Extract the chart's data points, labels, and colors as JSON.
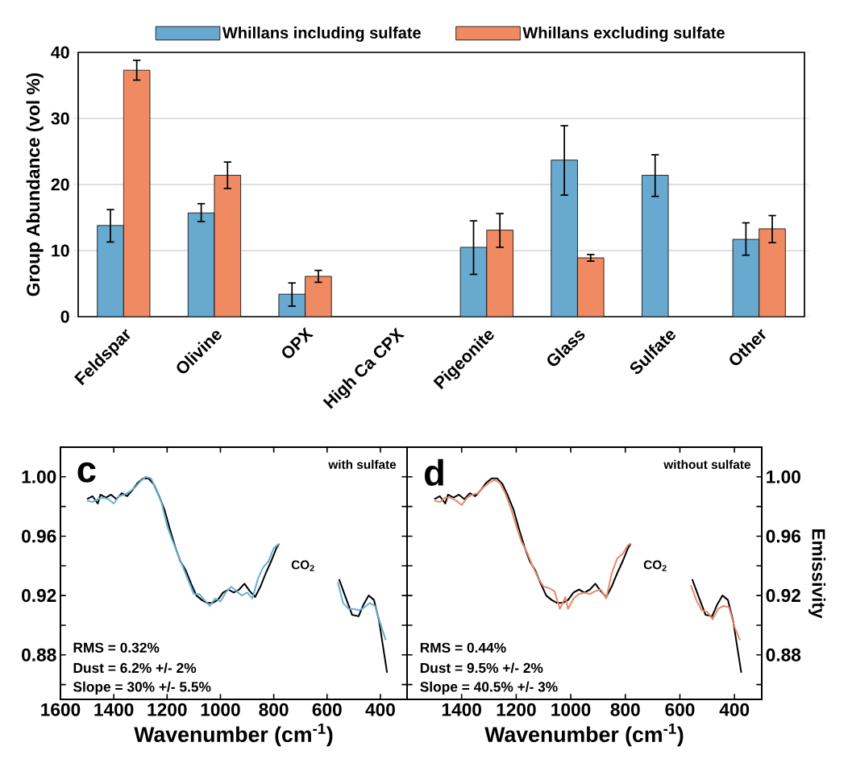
{
  "chart_data": [
    {
      "type": "bar",
      "ylabel": "Group Abundance (vol %)",
      "categories": [
        "Feldspar",
        "Olivine",
        "OPX",
        "High Ca CPX",
        "Pigeonite",
        "Glass",
        "Sulfate",
        "Other"
      ],
      "series": [
        {
          "name": "Whillans including sulfate",
          "color": "#67a9cf",
          "values": [
            13.8,
            15.7,
            3.4,
            null,
            10.5,
            23.7,
            21.4,
            11.7
          ],
          "errors": [
            [
              11.3,
              16.2
            ],
            [
              14.4,
              17.1
            ],
            [
              1.6,
              5.1
            ],
            null,
            [
              6.4,
              14.5
            ],
            [
              18.4,
              28.9
            ],
            [
              18.2,
              24.5
            ],
            [
              9.3,
              14.2
            ]
          ]
        },
        {
          "name": "Whillans excluding sulfate",
          "color": "#ef8a62",
          "values": [
            37.3,
            21.4,
            6.1,
            null,
            13.1,
            8.9,
            null,
            13.3
          ],
          "errors": [
            [
              35.8,
              38.8
            ],
            [
              19.4,
              23.4
            ],
            [
              5.2,
              7.0
            ],
            null,
            [
              10.5,
              15.6
            ],
            [
              8.4,
              9.4
            ],
            null,
            [
              11.2,
              15.3
            ]
          ]
        }
      ],
      "ylim": [
        0,
        40
      ],
      "yticks": [
        0,
        10,
        20,
        30,
        40
      ],
      "grid": "y",
      "legend": "top"
    },
    {
      "type": "line",
      "xlabel": "Wavenumber (cm$^{-1}$)",
      "xlim": [
        1600,
        300
      ],
      "ylim": [
        0.85,
        1.02
      ],
      "xticks": [
        1600,
        1400,
        1200,
        1000,
        800,
        600,
        400
      ],
      "yticks": [
        {
          "value": 1.0,
          "label": "1.00"
        },
        {
          "value": 0.98,
          "label": null
        },
        {
          "value": 0.96,
          "label": "0.96"
        },
        {
          "value": 0.94,
          "label": null
        },
        {
          "value": 0.92,
          "label": "0.92"
        },
        {
          "value": 0.9,
          "label": null
        },
        {
          "value": 0.88,
          "label": "0.88"
        },
        {
          "value": 0.86,
          "label": null
        }
      ],
      "annotations": [
        "c",
        "with sulfate",
        "CO$_{2}$",
        "RMS = 0.32%",
        "Dust = 6.2% +/- 2%",
        "Slope = 30% +/- 5.5%"
      ],
      "series": [
        {
          "color": "#000000",
          "x": [
            1500,
            1480,
            1460,
            1450,
            1430,
            1410,
            1390,
            1370,
            1350,
            1330,
            1310,
            1290,
            1270,
            1250,
            1230,
            1210,
            1190,
            1170,
            1150,
            1130,
            1110,
            1090,
            1070,
            1050,
            1030,
            1010,
            990,
            970,
            950,
            930,
            910,
            890,
            870,
            850,
            830,
            810,
            790,
            780,
            670,
            555,
            531,
            506,
            482,
            463,
            444,
            424,
            405,
            375
          ],
          "values": [
            0.985,
            0.987,
            0.982,
            0.988,
            0.986,
            0.988,
            0.985,
            0.989,
            0.987,
            0.991,
            0.996,
            0.999,
            0.999,
            0.995,
            0.987,
            0.978,
            0.965,
            0.953,
            0.943,
            0.937,
            0.928,
            0.92,
            0.917,
            0.915,
            0.915,
            0.917,
            0.922,
            0.924,
            0.922,
            0.924,
            0.928,
            0.923,
            0.919,
            0.926,
            0.935,
            0.943,
            0.952,
            0.955,
            null,
            0.931,
            0.919,
            0.907,
            0.906,
            0.914,
            0.92,
            0.917,
            0.903,
            0.868
          ]
        },
        {
          "color": "#6aaed6",
          "x": [
            1500,
            1480,
            1460,
            1440,
            1420,
            1400,
            1380,
            1360,
            1340,
            1320,
            1300,
            1280,
            1260,
            1240,
            1220,
            1200,
            1180,
            1160,
            1140,
            1120,
            1100,
            1080,
            1060,
            1040,
            1020,
            1000,
            980,
            960,
            940,
            920,
            900,
            880,
            860,
            840,
            820,
            800,
            780,
            670,
            560,
            540,
            520,
            500,
            480,
            460,
            440,
            420,
            400,
            380
          ],
          "values": [
            0.984,
            0.983,
            0.985,
            0.986,
            0.985,
            0.982,
            0.987,
            0.988,
            0.99,
            0.993,
            0.997,
            1.0,
            0.999,
            0.991,
            0.982,
            0.967,
            0.957,
            0.948,
            0.939,
            0.93,
            0.921,
            0.921,
            0.917,
            0.913,
            0.918,
            0.916,
            0.922,
            0.926,
            0.923,
            0.92,
            0.922,
            0.918,
            0.931,
            0.939,
            0.943,
            0.952,
            0.955,
            null,
            0.929,
            0.915,
            0.911,
            0.911,
            0.91,
            0.912,
            0.915,
            0.913,
            0.901,
            0.89
          ]
        }
      ]
    },
    {
      "type": "line",
      "xlabel": "Wavenumber (cm$^{-1}$)",
      "ylabel": "Emissivity",
      "xlim": [
        1600,
        300
      ],
      "ylim": [
        0.85,
        1.02
      ],
      "xticks": [
        1400,
        1200,
        1000,
        800,
        600,
        400
      ],
      "yticks": [
        {
          "value": 1.0,
          "label": "1.00"
        },
        {
          "value": 0.98,
          "label": null
        },
        {
          "value": 0.96,
          "label": "0.96"
        },
        {
          "value": 0.94,
          "label": null
        },
        {
          "value": 0.92,
          "label": "0.92"
        },
        {
          "value": 0.9,
          "label": null
        },
        {
          "value": 0.88,
          "label": "0.88"
        },
        {
          "value": 0.86,
          "label": null
        }
      ],
      "annotations": [
        "d",
        "without sulfate",
        "CO$_{2}$",
        "RMS = 0.44%",
        "Dust = 9.5% +/- 2%",
        "Slope = 40.5% +/- 3%"
      ],
      "series": [
        {
          "color": "#000000",
          "x": [
            1500,
            1480,
            1460,
            1450,
            1430,
            1410,
            1390,
            1370,
            1350,
            1330,
            1310,
            1290,
            1270,
            1250,
            1230,
            1210,
            1190,
            1170,
            1150,
            1130,
            1110,
            1090,
            1070,
            1050,
            1030,
            1010,
            990,
            970,
            950,
            930,
            910,
            890,
            870,
            850,
            830,
            810,
            790,
            780,
            670,
            555,
            531,
            506,
            482,
            463,
            444,
            424,
            405,
            375
          ],
          "values": [
            0.985,
            0.987,
            0.982,
            0.988,
            0.986,
            0.988,
            0.985,
            0.989,
            0.987,
            0.991,
            0.996,
            0.999,
            0.999,
            0.995,
            0.987,
            0.978,
            0.965,
            0.953,
            0.943,
            0.937,
            0.928,
            0.92,
            0.917,
            0.915,
            0.915,
            0.917,
            0.922,
            0.924,
            0.922,
            0.924,
            0.928,
            0.923,
            0.919,
            0.926,
            0.935,
            0.943,
            0.952,
            0.955,
            null,
            0.931,
            0.919,
            0.907,
            0.906,
            0.914,
            0.92,
            0.917,
            0.903,
            0.868
          ]
        },
        {
          "color": "#e8896a",
          "x": [
            1500,
            1480,
            1460,
            1440,
            1420,
            1400,
            1380,
            1360,
            1340,
            1320,
            1300,
            1280,
            1260,
            1240,
            1220,
            1200,
            1180,
            1160,
            1140,
            1120,
            1100,
            1080,
            1060,
            1040,
            1020,
            1010,
            990,
            970,
            950,
            930,
            910,
            890,
            870,
            850,
            830,
            810,
            790,
            780,
            670,
            560,
            540,
            520,
            500,
            480,
            460,
            440,
            420,
            400,
            380
          ],
          "values": [
            0.984,
            0.983,
            0.986,
            0.986,
            0.984,
            0.981,
            0.986,
            0.988,
            0.989,
            0.993,
            0.996,
            0.998,
            0.996,
            0.989,
            0.979,
            0.967,
            0.956,
            0.949,
            0.94,
            0.932,
            0.926,
            0.925,
            0.923,
            0.911,
            0.919,
            0.911,
            0.918,
            0.921,
            0.922,
            0.921,
            0.923,
            0.924,
            0.918,
            0.935,
            0.945,
            0.948,
            0.954,
            0.955,
            null,
            0.927,
            0.917,
            0.91,
            0.909,
            0.904,
            0.911,
            0.913,
            0.912,
            0.899,
            0.89
          ]
        }
      ]
    }
  ]
}
